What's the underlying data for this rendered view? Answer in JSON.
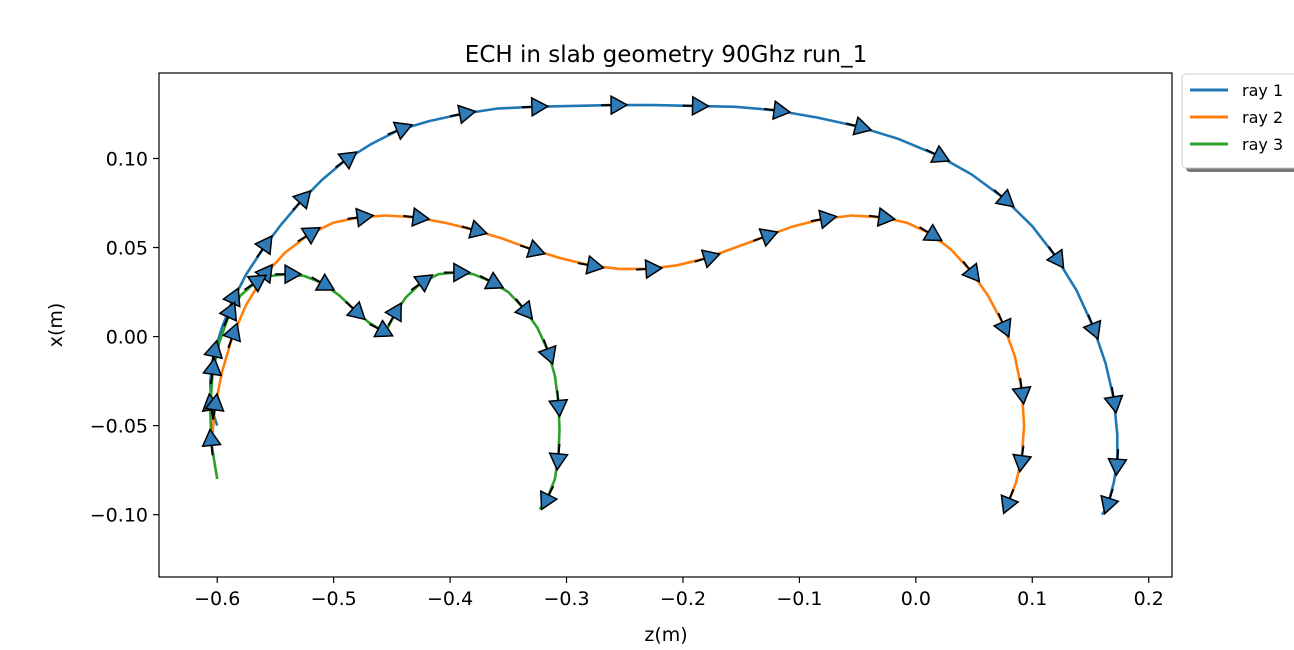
{
  "chart_data": {
    "type": "line",
    "title": "ECH in slab geometry 90Ghz  run_1",
    "xlabel": "z(m)",
    "ylabel": "x(m)",
    "xlim": [
      -0.65,
      0.22
    ],
    "ylim": [
      -0.135,
      0.148
    ],
    "xticks": [
      -0.6,
      -0.5,
      -0.4,
      -0.3,
      -0.2,
      -0.1,
      0.0,
      0.1,
      0.2
    ],
    "xtick_labels": [
      "−0.6",
      "−0.5",
      "−0.4",
      "−0.3",
      "−0.2",
      "−0.1",
      "0.0",
      "0.1",
      "0.2"
    ],
    "yticks": [
      -0.1,
      -0.05,
      0.0,
      0.05,
      0.1
    ],
    "ytick_labels": [
      "−0.10",
      "−0.05",
      "0.00",
      "0.05",
      "0.10"
    ],
    "grid": false,
    "legend_position": "outside-top-right",
    "series": [
      {
        "name": "ray 1",
        "color": "#1f77b4",
        "x": [
          -0.6,
          -0.605,
          -0.606,
          -0.603,
          -0.596,
          -0.587,
          -0.575,
          -0.56,
          -0.545,
          -0.528,
          -0.51,
          -0.49,
          -0.468,
          -0.444,
          -0.418,
          -0.39,
          -0.36,
          -0.328,
          -0.295,
          -0.26,
          -0.225,
          -0.19,
          -0.155,
          -0.12,
          -0.085,
          -0.05,
          -0.015,
          0.018,
          0.048,
          0.075,
          0.1,
          0.12,
          0.138,
          0.152,
          0.163,
          0.17,
          0.173,
          0.173,
          0.17,
          0.166,
          0.162,
          0.16
        ],
        "y": [
          -0.05,
          -0.04,
          -0.025,
          -0.01,
          0.005,
          0.02,
          0.035,
          0.05,
          0.063,
          0.076,
          0.088,
          0.099,
          0.108,
          0.116,
          0.121,
          0.125,
          0.128,
          0.129,
          0.1295,
          0.13,
          0.13,
          0.1295,
          0.129,
          0.127,
          0.123,
          0.118,
          0.111,
          0.102,
          0.091,
          0.078,
          0.062,
          0.045,
          0.026,
          0.006,
          -0.015,
          -0.035,
          -0.055,
          -0.07,
          -0.082,
          -0.092,
          -0.098,
          -0.1
        ]
      },
      {
        "name": "ray 2",
        "color": "#ff7f0e",
        "x": [
          -0.605,
          -0.602,
          -0.596,
          -0.587,
          -0.575,
          -0.56,
          -0.542,
          -0.522,
          -0.5,
          -0.478,
          -0.455,
          -0.43,
          -0.405,
          -0.38,
          -0.355,
          -0.33,
          -0.305,
          -0.28,
          -0.255,
          -0.23,
          -0.205,
          -0.18,
          -0.155,
          -0.13,
          -0.105,
          -0.08,
          -0.055,
          -0.03,
          -0.008,
          0.012,
          0.03,
          0.047,
          0.062,
          0.075,
          0.085,
          0.091,
          0.093,
          0.091,
          0.086,
          0.08,
          0.076
        ],
        "y": [
          -0.06,
          -0.04,
          -0.02,
          0.0,
          0.018,
          0.034,
          0.047,
          0.057,
          0.064,
          0.067,
          0.068,
          0.067,
          0.064,
          0.06,
          0.055,
          0.049,
          0.044,
          0.04,
          0.038,
          0.038,
          0.04,
          0.044,
          0.05,
          0.056,
          0.062,
          0.066,
          0.068,
          0.067,
          0.064,
          0.058,
          0.049,
          0.037,
          0.023,
          0.007,
          -0.011,
          -0.03,
          -0.05,
          -0.068,
          -0.082,
          -0.092,
          -0.098
        ]
      },
      {
        "name": "ray 3",
        "color": "#2ca02c",
        "x": [
          -0.6,
          -0.605,
          -0.606,
          -0.604,
          -0.598,
          -0.59,
          -0.58,
          -0.568,
          -0.555,
          -0.54,
          -0.525,
          -0.51,
          -0.495,
          -0.482,
          -0.47,
          -0.46,
          -0.455,
          -0.448,
          -0.438,
          -0.425,
          -0.41,
          -0.395,
          -0.38,
          -0.365,
          -0.35,
          -0.337,
          -0.325,
          -0.316,
          -0.31,
          -0.307,
          -0.306,
          -0.307,
          -0.31,
          -0.316,
          -0.323
        ],
        "y": [
          -0.08,
          -0.06,
          -0.04,
          -0.02,
          -0.003,
          0.012,
          0.023,
          0.03,
          0.034,
          0.035,
          0.034,
          0.03,
          0.023,
          0.015,
          0.008,
          0.004,
          0.003,
          0.012,
          0.022,
          0.03,
          0.035,
          0.036,
          0.035,
          0.031,
          0.025,
          0.016,
          0.005,
          -0.008,
          -0.022,
          -0.037,
          -0.052,
          -0.067,
          -0.08,
          -0.09,
          -0.097
        ]
      }
    ],
    "arrow_color": "#2e7bb7"
  },
  "legend": {
    "items": [
      "ray 1",
      "ray 2",
      "ray 3"
    ]
  }
}
